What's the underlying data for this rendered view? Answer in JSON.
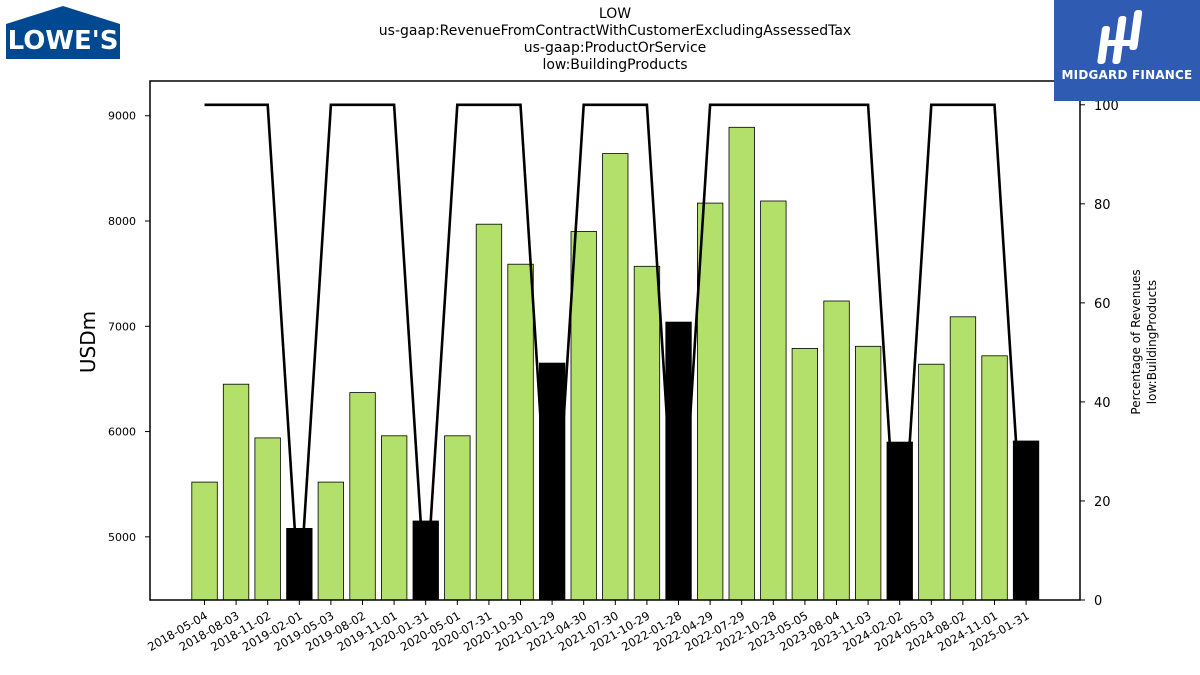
{
  "title_lines": [
    "LOW",
    "us-gaap:RevenueFromContractWithCustomerExcludingAssessedTax",
    "us-gaap:ProductOrService",
    "low:BuildingProducts"
  ],
  "logos": {
    "left_text": "LOWE'S",
    "right_text": "MIDGARD FINANCE"
  },
  "colors": {
    "bar_green": "#b3df6b",
    "bar_black": "#000000",
    "line": "#000000",
    "logo_blue": "#004990",
    "midgard_blue": "#2f5bb3"
  },
  "chart_data": {
    "type": "bar",
    "ylabel": "USDm",
    "y2label_lines": [
      "Percentage of Revenues",
      "low:BuildingProducts"
    ],
    "ylim": [
      4400,
      9330
    ],
    "y2lim": [
      0,
      104.8
    ],
    "yticks": [
      5000,
      6000,
      7000,
      8000,
      9000
    ],
    "y2ticks": [
      0,
      20,
      40,
      60,
      80,
      100
    ],
    "categories": [
      "2018-05-04",
      "2018-08-03",
      "2018-11-02",
      "2019-02-01",
      "2019-05-03",
      "2019-08-02",
      "2019-11-01",
      "2020-01-31",
      "2020-05-01",
      "2020-07-31",
      "2020-10-30",
      "2021-01-29",
      "2021-04-30",
      "2021-07-30",
      "2021-10-29",
      "2022-01-28",
      "2022-04-29",
      "2022-07-29",
      "2022-10-28",
      "2023-05-05",
      "2023-08-04",
      "2023-11-03",
      "2024-02-02",
      "2024-05-03",
      "2024-08-02",
      "2024-11-01",
      "2025-01-31"
    ],
    "series": [
      {
        "values": [
          5520,
          6450,
          5940,
          5080,
          5520,
          6370,
          5960,
          5150,
          5960,
          7970,
          7590,
          6650,
          7900,
          8640,
          7570,
          7040,
          8170,
          8890,
          8190,
          6790,
          7240,
          6810,
          5900,
          6640,
          7090,
          6720,
          5910
        ],
        "annual_flags": [
          false,
          false,
          false,
          true,
          false,
          false,
          false,
          true,
          false,
          false,
          false,
          true,
          false,
          false,
          false,
          true,
          false,
          false,
          false,
          false,
          false,
          false,
          true,
          false,
          false,
          false,
          true
        ]
      },
      {
        "values": [
          100,
          100,
          100,
          0,
          100,
          100,
          100,
          0,
          100,
          100,
          100,
          0,
          100,
          100,
          100,
          0,
          100,
          100,
          100,
          100,
          100,
          100,
          0,
          100,
          100,
          100,
          0
        ]
      }
    ]
  }
}
